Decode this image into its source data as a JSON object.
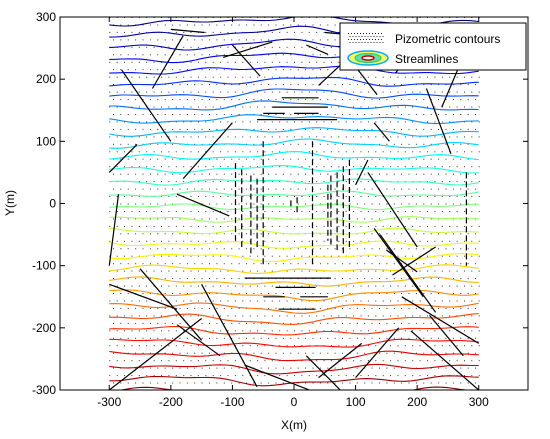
{
  "chart_data": {
    "type": "line",
    "xlabel": "X(m)",
    "ylabel": "Y(m)",
    "xlim": [
      -380,
      380
    ],
    "ylim": [
      -300,
      300
    ],
    "xticks": [
      -300,
      -200,
      -100,
      0,
      100,
      200,
      300
    ],
    "yticks": [
      -300,
      -200,
      -100,
      0,
      100,
      200,
      300
    ],
    "xtick_labels": [
      "-300",
      "-200",
      "-100",
      "0",
      "100",
      "200",
      "300"
    ],
    "ytick_labels": [
      "-300",
      "-200",
      "-100",
      "0",
      "100",
      "200",
      "300"
    ],
    "grid": false,
    "legend_position": "top-right",
    "legend": [
      {
        "label": "Pizometric contours",
        "marker": "dotted-field-icon"
      },
      {
        "label": "Streamlines",
        "marker": "contour-ellipse-icon"
      }
    ],
    "streamline_field": {
      "x_range": [
        -300,
        300
      ],
      "y_range": [
        -300,
        290
      ],
      "count": 31,
      "color_order": "blue at top, red at bottom (jet colormap)"
    },
    "contour_dot_field": {
      "x_range": [
        -300,
        300
      ],
      "y_range": [
        -300,
        300
      ],
      "dx": 12,
      "dy": 12
    },
    "fractures": [
      {
        "x": [
          -300,
          -285
        ],
        "y": [
          -100,
          15
        ]
      },
      {
        "x": [
          -300,
          -255
        ],
        "y": [
          50,
          95
        ]
      },
      {
        "x": [
          -280,
          -200
        ],
        "y": [
          215,
          100
        ]
      },
      {
        "x": [
          -230,
          -180
        ],
        "y": [
          185,
          270
        ]
      },
      {
        "x": [
          -250,
          -150
        ],
        "y": [
          -105,
          -220
        ]
      },
      {
        "x": [
          -300,
          -190
        ],
        "y": [
          -130,
          -170
        ]
      },
      {
        "x": [
          -300,
          -150
        ],
        "y": [
          -300,
          -185
        ]
      },
      {
        "x": [
          -150,
          -60
        ],
        "y": [
          -130,
          -295
        ]
      },
      {
        "x": [
          -190,
          -120
        ],
        "y": [
          -195,
          -245
        ]
      },
      {
        "x": [
          -80,
          25
        ],
        "y": [
          -260,
          -300
        ]
      },
      {
        "x": [
          -190,
          -105
        ],
        "y": [
          15,
          -20
        ]
      },
      {
        "x": [
          -180,
          -100
        ],
        "y": [
          40,
          130
        ]
      },
      {
        "x": [
          -100,
          -55
        ],
        "y": [
          255,
          205
        ]
      },
      {
        "x": [
          -115,
          -35
        ],
        "y": [
          235,
          260
        ]
      },
      {
        "x": [
          -200,
          -145
        ],
        "y": [
          280,
          275
        ]
      },
      {
        "x": [
          -20,
          40
        ],
        "y": [
          170,
          170
        ]
      },
      {
        "x": [
          -60,
          70
        ],
        "y": [
          135,
          135
        ]
      },
      {
        "x": [
          -50,
          -15
        ],
        "y": [
          145,
          145
        ]
      },
      {
        "x": [
          0,
          40
        ],
        "y": [
          145,
          145
        ]
      },
      {
        "x": [
          -35,
          55
        ],
        "y": [
          155,
          155
        ]
      },
      {
        "x": [
          -30,
          35
        ],
        "y": [
          -135,
          -135
        ]
      },
      {
        "x": [
          -50,
          -15
        ],
        "y": [
          -150,
          -150
        ]
      },
      {
        "x": [
          10,
          55
        ],
        "y": [
          -150,
          -150
        ]
      },
      {
        "x": [
          -25,
          35
        ],
        "y": [
          -170,
          -170
        ]
      },
      {
        "x": [
          -80,
          60
        ],
        "y": [
          -120,
          -120
        ]
      },
      {
        "x": [
          -95,
          -95
        ],
        "y": [
          65,
          -60
        ]
      },
      {
        "x": [
          -85,
          -85
        ],
        "y": [
          55,
          -70
        ]
      },
      {
        "x": [
          -70,
          -70
        ],
        "y": [
          45,
          -80
        ]
      },
      {
        "x": [
          -60,
          -60
        ],
        "y": [
          40,
          -70
        ]
      },
      {
        "x": [
          -50,
          -50
        ],
        "y": [
          100,
          -100
        ]
      },
      {
        "x": [
          -5,
          -5
        ],
        "y": [
          5,
          -10
        ]
      },
      {
        "x": [
          5,
          5
        ],
        "y": [
          10,
          -15
        ]
      },
      {
        "x": [
          30,
          30
        ],
        "y": [
          100,
          -100
        ]
      },
      {
        "x": [
          60,
          60
        ],
        "y": [
          45,
          -70
        ]
      },
      {
        "x": [
          70,
          70
        ],
        "y": [
          50,
          -75
        ]
      },
      {
        "x": [
          80,
          80
        ],
        "y": [
          60,
          -80
        ]
      },
      {
        "x": [
          90,
          90
        ],
        "y": [
          70,
          -70
        ]
      },
      {
        "x": [
          55,
          55
        ],
        "y": [
          30,
          -60
        ]
      },
      {
        "x": [
          100,
          120
        ],
        "y": [
          30,
          70
        ]
      },
      {
        "x": [
          120,
          200
        ],
        "y": [
          50,
          -70
        ]
      },
      {
        "x": [
          130,
          210
        ],
        "y": [
          -40,
          -150
        ]
      },
      {
        "x": [
          140,
          230
        ],
        "y": [
          -50,
          -175
        ]
      },
      {
        "x": [
          150,
          200
        ],
        "y": [
          -75,
          -110
        ]
      },
      {
        "x": [
          160,
          230
        ],
        "y": [
          -115,
          -70
        ]
      },
      {
        "x": [
          175,
          300
        ],
        "y": [
          -150,
          -225
        ]
      },
      {
        "x": [
          190,
          300
        ],
        "y": [
          -205,
          -300
        ]
      },
      {
        "x": [
          220,
          275
        ],
        "y": [
          -180,
          -245
        ]
      },
      {
        "x": [
          20,
          75
        ],
        "y": [
          -245,
          -300
        ]
      },
      {
        "x": [
          40,
          110
        ],
        "y": [
          -280,
          -225
        ]
      },
      {
        "x": [
          100,
          170
        ],
        "y": [
          -280,
          -200
        ]
      },
      {
        "x": [
          215,
          255
        ],
        "y": [
          185,
          80
        ]
      },
      {
        "x": [
          240,
          270
        ],
        "y": [
          155,
          225
        ]
      },
      {
        "x": [
          165,
          205
        ],
        "y": [
          210,
          260
        ]
      },
      {
        "x": [
          40,
          105
        ],
        "y": [
          190,
          250
        ]
      },
      {
        "x": [
          100,
          135
        ],
        "y": [
          220,
          175
        ]
      },
      {
        "x": [
          50,
          110
        ],
        "y": [
          275,
          270
        ]
      },
      {
        "x": [
          20,
          55
        ],
        "y": [
          255,
          240
        ]
      },
      {
        "x": [
          280,
          280
        ],
        "y": [
          50,
          -100
        ]
      },
      {
        "x": [
          130,
          155
        ],
        "y": [
          130,
          100
        ]
      }
    ]
  }
}
